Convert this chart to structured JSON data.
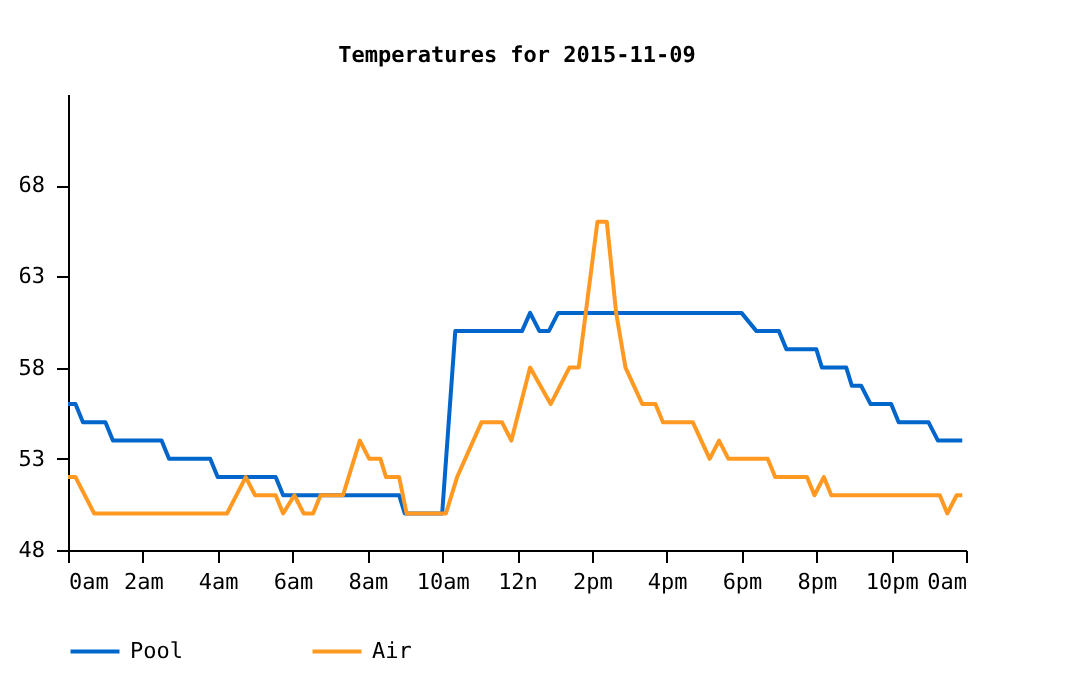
{
  "chart_data": {
    "type": "line",
    "title": "Temperatures for 2015-11-09",
    "xlim": [
      "2015-11-09T00:00",
      "2015-11-10T00:00"
    ],
    "ylim": [
      48,
      73
    ],
    "xticks": [
      {
        "value": "2015-11-09T00:00",
        "label": "0am"
      },
      {
        "value": "2015-11-09T02:00",
        "label": "2am"
      },
      {
        "value": "2015-11-09T04:00",
        "label": "4am"
      },
      {
        "value": "2015-11-09T06:00",
        "label": "6am"
      },
      {
        "value": "2015-11-09T08:00",
        "label": "8am"
      },
      {
        "value": "2015-11-09T10:00",
        "label": "10am"
      },
      {
        "value": "2015-11-09T12:00",
        "label": "12n"
      },
      {
        "value": "2015-11-09T14:00",
        "label": "2pm"
      },
      {
        "value": "2015-11-09T16:00",
        "label": "4pm"
      },
      {
        "value": "2015-11-09T18:00",
        "label": "6pm"
      },
      {
        "value": "2015-11-09T20:00",
        "label": "8pm"
      },
      {
        "value": "2015-11-09T22:00",
        "label": "10pm"
      },
      {
        "value": "2015-11-10T00:00",
        "label": "0am"
      }
    ],
    "yticks": [
      48,
      53,
      58,
      63,
      68
    ],
    "grid": false,
    "legend": "bottom",
    "marker": "none",
    "line_style": "solid",
    "series": [
      {
        "name": "Pool",
        "color": "#0066cc",
        "x": [
          "2015-11-09T00:00",
          "2015-11-09T00:12",
          "2015-11-09T00:24",
          "2015-11-09T01:00",
          "2015-11-09T01:12",
          "2015-11-09T02:30",
          "2015-11-09T02:42",
          "2015-11-09T03:48",
          "2015-11-09T04:00",
          "2015-11-09T05:33",
          "2015-11-09T05:45",
          "2015-11-09T08:51",
          "2015-11-09T09:00",
          "2015-11-09T10:00",
          "2015-11-09T10:21",
          "2015-11-09T12:08",
          "2015-11-09T12:21",
          "2015-11-09T12:36",
          "2015-11-09T12:51",
          "2015-11-09T13:06",
          "2015-11-09T18:00",
          "2015-11-09T18:24",
          "2015-11-09T19:00",
          "2015-11-09T19:12",
          "2015-11-09T20:00",
          "2015-11-09T20:09",
          "2015-11-09T20:48",
          "2015-11-09T20:57",
          "2015-11-09T21:12",
          "2015-11-09T21:27",
          "2015-11-09T22:00",
          "2015-11-09T22:12",
          "2015-11-09T23:00",
          "2015-11-09T23:15",
          "2015-11-09T23:54"
        ],
        "values": [
          56,
          56,
          55,
          55,
          54,
          54,
          53,
          53,
          52,
          52,
          51,
          51,
          50,
          50,
          60,
          60,
          61,
          60,
          60,
          61,
          61,
          60,
          60,
          59,
          59,
          58,
          58,
          57,
          57,
          56,
          56,
          55,
          55,
          54,
          54
        ]
      },
      {
        "name": "Air",
        "color": "#ff9922",
        "x": [
          "2015-11-09T00:00",
          "2015-11-09T00:12",
          "2015-11-09T00:42",
          "2015-11-09T04:15",
          "2015-11-09T04:45",
          "2015-11-09T05:00",
          "2015-11-09T05:33",
          "2015-11-09T05:45",
          "2015-11-09T06:03",
          "2015-11-09T06:18",
          "2015-11-09T06:33",
          "2015-11-09T06:45",
          "2015-11-09T07:21",
          "2015-11-09T07:48",
          "2015-11-09T08:03",
          "2015-11-09T08:21",
          "2015-11-09T08:30",
          "2015-11-09T08:51",
          "2015-11-09T09:03",
          "2015-11-09T10:06",
          "2015-11-09T10:24",
          "2015-11-09T11:03",
          "2015-11-09T11:36",
          "2015-11-09T11:51",
          "2015-11-09T12:21",
          "2015-11-09T12:54",
          "2015-11-09T13:24",
          "2015-11-09T13:39",
          "2015-11-09T14:09",
          "2015-11-09T14:24",
          "2015-11-09T14:39",
          "2015-11-09T14:54",
          "2015-11-09T15:21",
          "2015-11-09T15:42",
          "2015-11-09T15:54",
          "2015-11-09T16:42",
          "2015-11-09T17:09",
          "2015-11-09T17:24",
          "2015-11-09T17:39",
          "2015-11-09T18:42",
          "2015-11-09T18:54",
          "2015-11-09T19:45",
          "2015-11-09T19:57",
          "2015-11-09T20:12",
          "2015-11-09T20:24",
          "2015-11-09T23:18",
          "2015-11-09T23:30",
          "2015-11-09T23:45",
          "2015-11-09T23:54"
        ],
        "values": [
          52,
          52,
          50,
          50,
          52,
          51,
          51,
          50,
          51,
          50,
          50,
          51,
          51,
          54,
          53,
          53,
          52,
          52,
          50,
          50,
          52,
          55,
          55,
          54,
          58,
          56,
          58,
          58,
          66,
          66,
          61,
          58,
          56,
          56,
          55,
          55,
          53,
          54,
          53,
          53,
          52,
          52,
          51,
          52,
          51,
          51,
          50,
          51,
          51
        ]
      }
    ]
  }
}
